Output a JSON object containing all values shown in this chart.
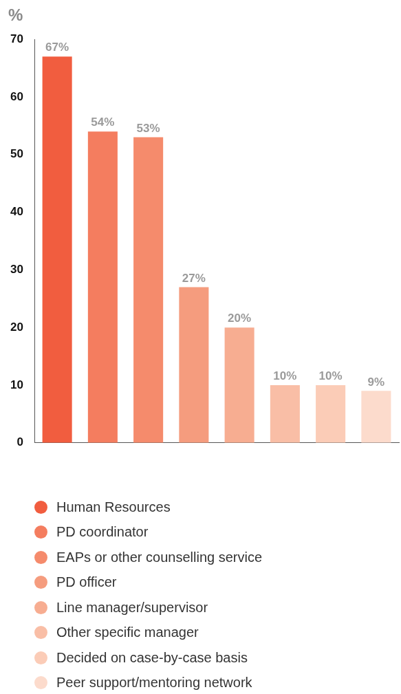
{
  "chart_data": {
    "type": "bar",
    "ylabel": "%",
    "categories": [
      null,
      null,
      null,
      null,
      null,
      null,
      null,
      null
    ],
    "series": [
      {
        "name": "Human Resources",
        "color": "#f15d3f",
        "values": [
          67,
          null,
          null,
          null,
          null,
          null,
          null,
          null
        ],
        "value_labels": [
          "67%",
          null,
          null,
          null,
          null,
          null,
          null,
          null
        ]
      },
      {
        "name": "PD coordinator",
        "color": "#f47d5f",
        "values": [
          null,
          54,
          null,
          null,
          null,
          null,
          null,
          null
        ],
        "value_labels": [
          null,
          "54%",
          null,
          null,
          null,
          null,
          null,
          null
        ]
      },
      {
        "name": "EAPs or other counselling service",
        "color": "#f58b6c",
        "values": [
          null,
          null,
          53,
          null,
          null,
          null,
          null,
          null
        ],
        "value_labels": [
          null,
          null,
          "53%",
          null,
          null,
          null,
          null,
          null
        ]
      },
      {
        "name": "PD officer",
        "color": "#f59c7e",
        "values": [
          null,
          null,
          null,
          27,
          null,
          null,
          null,
          null
        ],
        "value_labels": [
          null,
          null,
          null,
          "27%",
          null,
          null,
          null,
          null
        ]
      },
      {
        "name": "Line manager/supervisor",
        "color": "#f7ad91",
        "values": [
          null,
          null,
          null,
          null,
          20,
          null,
          null,
          null
        ],
        "value_labels": [
          null,
          null,
          null,
          null,
          "20%",
          null,
          null,
          null
        ]
      },
      {
        "name": "Other specific manager",
        "color": "#f9bea6",
        "values": [
          null,
          null,
          null,
          null,
          null,
          10,
          null,
          null
        ],
        "value_labels": [
          null,
          null,
          null,
          null,
          null,
          "10%",
          null,
          null
        ]
      },
      {
        "name": "Decided on case-by-case basis",
        "color": "#fbccb7",
        "values": [
          null,
          null,
          null,
          null,
          null,
          null,
          10,
          null
        ],
        "value_labels": [
          null,
          null,
          null,
          null,
          null,
          null,
          "10%",
          null
        ]
      },
      {
        "name": "Peer support/mentoring network",
        "color": "#fcdbcc",
        "values": [
          null,
          null,
          null,
          null,
          null,
          null,
          null,
          9
        ],
        "value_labels": [
          null,
          null,
          null,
          null,
          null,
          null,
          null,
          "9%"
        ]
      }
    ],
    "ylim": [
      0,
      70
    ],
    "yticks": [
      0,
      10,
      20,
      30,
      40,
      50,
      60,
      70
    ],
    "grid": false,
    "legend": "bottom",
    "tick_labels": "y"
  }
}
